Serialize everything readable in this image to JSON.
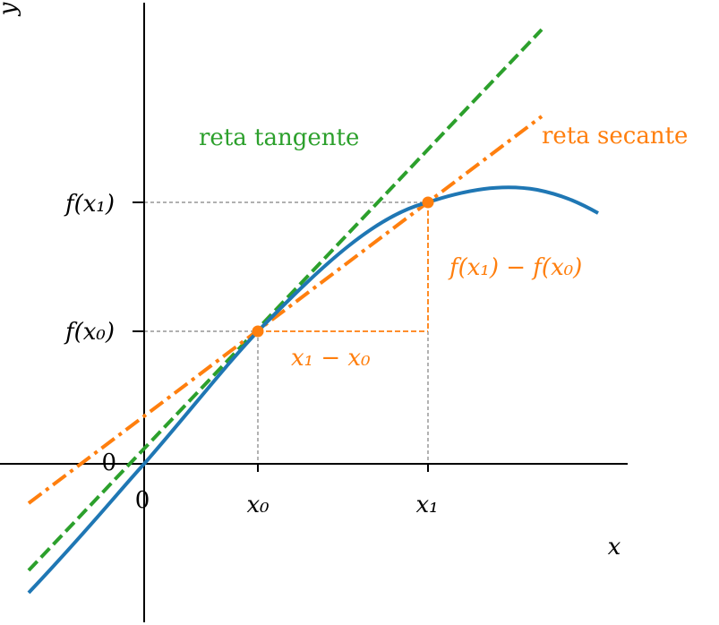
{
  "axes": {
    "y_label": "y",
    "x_label": "x",
    "y_origin": "0",
    "x_origin": "0"
  },
  "x_ticks": [
    "x₀",
    "x₁"
  ],
  "y_ticks": [
    "f(x₀)",
    "f(x₁)"
  ],
  "annotations": {
    "tangent": "reta tangente",
    "secant": "reta secante",
    "rise": "f(x₁) − f(x₀)",
    "run": "x₁ − x₀"
  }
}
